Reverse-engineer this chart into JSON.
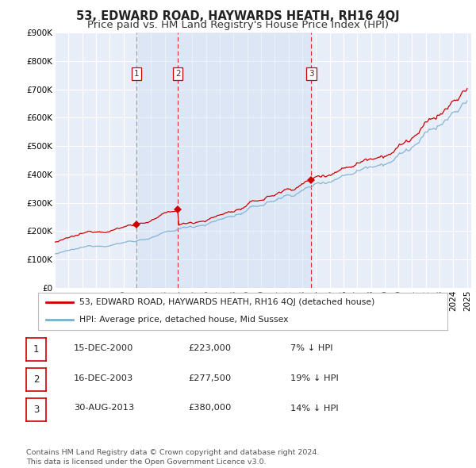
{
  "title": "53, EDWARD ROAD, HAYWARDS HEATH, RH16 4QJ",
  "subtitle": "Price paid vs. HM Land Registry's House Price Index (HPI)",
  "ylim": [
    0,
    900000
  ],
  "yticks": [
    0,
    100000,
    200000,
    300000,
    400000,
    500000,
    600000,
    700000,
    800000,
    900000
  ],
  "ytick_labels": [
    "£0",
    "£100K",
    "£200K",
    "£300K",
    "£400K",
    "£500K",
    "£600K",
    "£700K",
    "£800K",
    "£900K"
  ],
  "background_color": "#ffffff",
  "plot_bg_color": "#e8eef8",
  "grid_color": "#ffffff",
  "hpi_color": "#7aafd4",
  "price_color": "#cc0000",
  "sale_dates": [
    2000.96,
    2003.96,
    2013.66
  ],
  "sale_prices": [
    223000,
    277500,
    380000
  ],
  "sale_labels": [
    "1",
    "2",
    "3"
  ],
  "vline_color_1": "#999999",
  "vline_color_23": "#dd2222",
  "shade_color": "#c8d8f0",
  "legend_house_label": "53, EDWARD ROAD, HAYWARDS HEATH, RH16 4QJ (detached house)",
  "legend_hpi_label": "HPI: Average price, detached house, Mid Sussex",
  "table_rows": [
    {
      "num": "1",
      "date": "15-DEC-2000",
      "price": "£223,000",
      "pct": "7% ↓ HPI"
    },
    {
      "num": "2",
      "date": "16-DEC-2003",
      "price": "£277,500",
      "pct": "19% ↓ HPI"
    },
    {
      "num": "3",
      "date": "30-AUG-2013",
      "price": "£380,000",
      "pct": "14% ↓ HPI"
    }
  ],
  "footer": "Contains HM Land Registry data © Crown copyright and database right 2024.\nThis data is licensed under the Open Government Licence v3.0.",
  "title_fontsize": 10.5,
  "subtitle_fontsize": 9.5,
  "tick_fontsize": 7.5
}
